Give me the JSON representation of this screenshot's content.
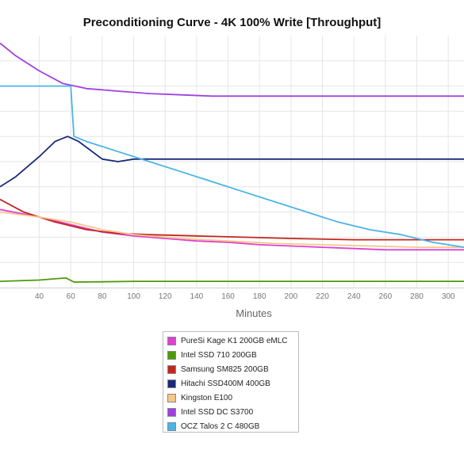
{
  "chart_data": {
    "type": "line",
    "title": "Preconditioning Curve - 4K 100% Write [Throughput]",
    "xlabel": "Minutes",
    "ylabel": "",
    "xlim": [
      15,
      310
    ],
    "ylim": [
      0,
      100
    ],
    "x_ticks": [
      40,
      60,
      80,
      100,
      120,
      140,
      160,
      180,
      200,
      220,
      240,
      260,
      280,
      300
    ],
    "y_grid_values": [
      10,
      20,
      30,
      40,
      50,
      60,
      70,
      80,
      90
    ],
    "grid": true,
    "legend_position": "bottom-center",
    "series": [
      {
        "name": "PureSi Kage K1 200GB eMLC",
        "color": "#e040d0",
        "points": [
          [
            15,
            31
          ],
          [
            40,
            28
          ],
          [
            60,
            25
          ],
          [
            80,
            22
          ],
          [
            100,
            20.5
          ],
          [
            120,
            19.5
          ],
          [
            140,
            18.5
          ],
          [
            160,
            18
          ],
          [
            180,
            17
          ],
          [
            200,
            16.5
          ],
          [
            220,
            16
          ],
          [
            240,
            15.5
          ],
          [
            260,
            15
          ],
          [
            280,
            15
          ],
          [
            310,
            15
          ]
        ]
      },
      {
        "name": "Intel SSD 710 200GB",
        "color": "#4e9a06",
        "points": [
          [
            15,
            2.5
          ],
          [
            40,
            3
          ],
          [
            50,
            3.5
          ],
          [
            57,
            3.8
          ],
          [
            62,
            2.2
          ],
          [
            80,
            2.3
          ],
          [
            100,
            2.5
          ],
          [
            150,
            2.5
          ],
          [
            200,
            2.5
          ],
          [
            250,
            2.5
          ],
          [
            310,
            2.5
          ]
        ]
      },
      {
        "name": "Samsung SM825 200GB",
        "color": "#c0281e",
        "points": [
          [
            15,
            35
          ],
          [
            30,
            30
          ],
          [
            50,
            26
          ],
          [
            70,
            23
          ],
          [
            90,
            21.5
          ],
          [
            110,
            21
          ],
          [
            140,
            20.5
          ],
          [
            170,
            20
          ],
          [
            200,
            19.5
          ],
          [
            240,
            19
          ],
          [
            280,
            19
          ],
          [
            310,
            19
          ]
        ]
      },
      {
        "name": "Hitachi SSD400M 400GB",
        "color": "#1a2a7a",
        "points": [
          [
            15,
            40
          ],
          [
            25,
            44
          ],
          [
            40,
            52
          ],
          [
            50,
            58
          ],
          [
            58,
            60
          ],
          [
            65,
            58
          ],
          [
            80,
            51
          ],
          [
            90,
            50
          ],
          [
            100,
            51
          ],
          [
            120,
            51
          ],
          [
            140,
            51
          ],
          [
            160,
            51
          ],
          [
            180,
            51
          ],
          [
            200,
            51
          ],
          [
            220,
            51
          ],
          [
            240,
            51
          ],
          [
            260,
            51
          ],
          [
            280,
            51
          ],
          [
            300,
            51
          ],
          [
            310,
            51
          ]
        ]
      },
      {
        "name": "Kingston E100",
        "color": "#f5c78a",
        "points": [
          [
            15,
            30
          ],
          [
            40,
            28
          ],
          [
            60,
            26
          ],
          [
            80,
            23
          ],
          [
            100,
            21
          ],
          [
            130,
            19.5
          ],
          [
            160,
            18.5
          ],
          [
            190,
            17.5
          ],
          [
            220,
            17
          ],
          [
            250,
            16.5
          ],
          [
            280,
            16
          ],
          [
            310,
            16
          ]
        ]
      },
      {
        "name": "Intel SSD DC S3700",
        "color": "#a040e0",
        "points": [
          [
            15,
            97
          ],
          [
            25,
            92
          ],
          [
            40,
            86
          ],
          [
            55,
            81
          ],
          [
            70,
            79
          ],
          [
            90,
            78
          ],
          [
            110,
            77
          ],
          [
            130,
            76.5
          ],
          [
            150,
            76
          ],
          [
            170,
            76
          ],
          [
            200,
            76
          ],
          [
            240,
            76
          ],
          [
            280,
            76
          ],
          [
            310,
            76
          ]
        ]
      },
      {
        "name": "OCZ Talos 2 C 480GB",
        "color": "#4ab4e8",
        "points": [
          [
            15,
            80
          ],
          [
            30,
            80
          ],
          [
            50,
            80
          ],
          [
            60,
            80
          ],
          [
            62,
            60
          ],
          [
            70,
            58
          ],
          [
            90,
            54
          ],
          [
            110,
            50
          ],
          [
            130,
            46
          ],
          [
            150,
            42
          ],
          [
            170,
            38
          ],
          [
            190,
            34
          ],
          [
            210,
            30
          ],
          [
            230,
            26
          ],
          [
            250,
            23
          ],
          [
            270,
            21
          ],
          [
            290,
            18
          ],
          [
            300,
            17
          ],
          [
            310,
            16
          ]
        ]
      }
    ]
  }
}
